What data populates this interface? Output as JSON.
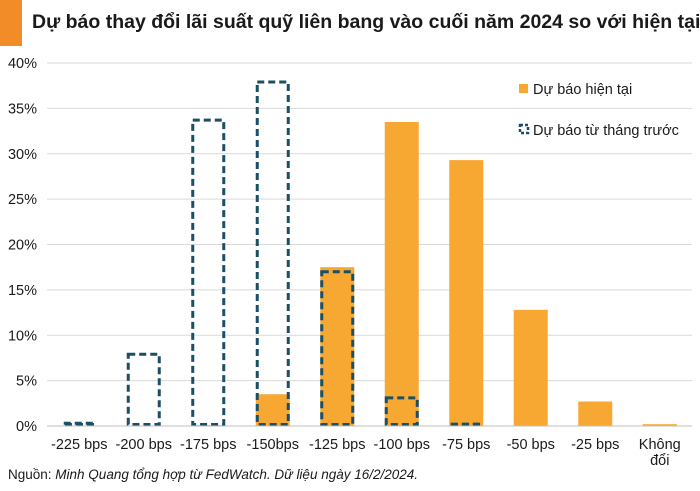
{
  "header": {
    "title": "Dự báo thay đổi lãi suất quỹ liên bang vào cuối năm 2024 so với hiện tại",
    "accent_color": "#f28c28"
  },
  "source": {
    "prefix": "Nguồn: ",
    "text": "Minh Quang tổng hợp từ FedWatch. Dữ liệu ngày 16/2/2024."
  },
  "chart_data": {
    "type": "bar",
    "title": "Dự báo thay đổi lãi suất quỹ liên bang vào cuối năm 2024 so với hiện tại",
    "categories": [
      "-225 bps",
      "-200 bps",
      "-175 bps",
      "-150bps",
      "-125 bps",
      "-100 bps",
      "-75 bps",
      "-50 bps",
      "-25 bps",
      [
        "Không",
        "đổi"
      ]
    ],
    "series": [
      {
        "name": "Dự báo hiện tại",
        "style": "filled",
        "color": "#f7a833",
        "values": [
          0,
          0,
          0.1,
          3.5,
          17.5,
          33.5,
          29.3,
          12.8,
          2.7,
          0.2
        ]
      },
      {
        "name": "Dự báo từ tháng trước",
        "style": "dashed-outline",
        "color": "#1b4f66",
        "values": [
          0.3,
          7.9,
          33.7,
          37.9,
          17.0,
          3.1,
          0.2,
          0,
          0,
          0
        ]
      }
    ],
    "ylim": [
      0,
      40
    ],
    "yticks": [
      0,
      5,
      10,
      15,
      20,
      25,
      30,
      35,
      40
    ],
    "ytick_suffix": "%",
    "grid": "horizontal",
    "legend": "top-right"
  }
}
